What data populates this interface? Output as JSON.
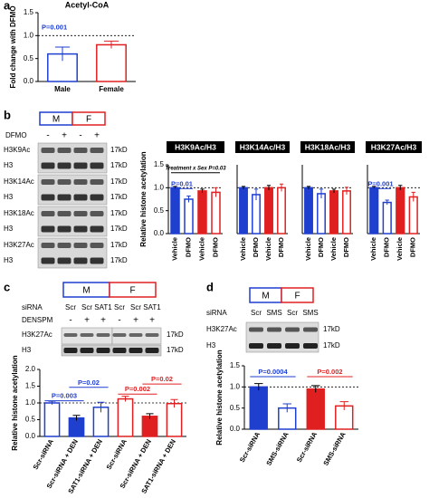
{
  "panels": [
    "a",
    "b",
    "c",
    "d"
  ],
  "blot_b": {
    "sexes": [
      "M",
      "F"
    ],
    "treatment": "DFMO",
    "signs": [
      "-",
      "+",
      "-",
      "+"
    ],
    "rows": [
      "H3K9Ac",
      "H3",
      "H3K14Ac",
      "H3",
      "H3K18Ac",
      "H3",
      "H3K27Ac",
      "H3"
    ],
    "sizes": [
      "17kD",
      "17kD",
      "17kD",
      "17kD",
      "17kD",
      "17kD",
      "17kD",
      "17kD"
    ]
  },
  "blot_c": {
    "sexes": [
      "M",
      "F"
    ],
    "sirna": "siRNA",
    "lanes": [
      "Scr",
      "Scr",
      "SAT1",
      "Scr",
      "Scr",
      "SAT1"
    ],
    "treatment": "DENSPM",
    "signs": [
      "-",
      "+",
      "+",
      "-",
      "+",
      "+"
    ],
    "rows": [
      "H3K27Ac",
      "H3"
    ],
    "sizes": [
      "17kD",
      "17kD"
    ]
  },
  "blot_d": {
    "sexes": [
      "M",
      "F"
    ],
    "sirna": "siRNA",
    "lanes": [
      "Scr",
      "SMS",
      "Scr",
      "SMS"
    ],
    "rows": [
      "H3K27Ac",
      "H3"
    ],
    "sizes": [
      "17kD",
      "17kD"
    ]
  },
  "chart_data": [
    {
      "type": "bar",
      "title": "Acetyl-CoA",
      "ylabel": "Fold change with DFMO",
      "categories": [
        "Male",
        "Female"
      ],
      "values": [
        0.6,
        0.8
      ],
      "errors": [
        0.15,
        0.08
      ],
      "colors": [
        "#1f3fcf",
        "#e02020"
      ],
      "filled": [
        false,
        false
      ],
      "ylim": [
        0,
        1.5
      ],
      "yticks": [
        {
          "value": 0,
          "label": "0.0"
        },
        {
          "value": 0.5,
          "label": "0.5"
        },
        {
          "value": 1,
          "label": "1.0"
        },
        {
          "value": 1.5,
          "label": "1.5"
        }
      ],
      "reference_line": 1,
      "annotations": [
        "P=0.001"
      ]
    },
    {
      "type": "bar",
      "title": "H3K9Ac/H3",
      "ylabel": "Relative histone acetylation",
      "categories": [
        "Vehicle",
        "DFMO",
        "Vehicle",
        "DFMO"
      ],
      "values": [
        1.0,
        0.75,
        0.93,
        0.9
      ],
      "errors": [
        0.03,
        0.07,
        0.04,
        0.1
      ],
      "colors": [
        "#1f3fcf",
        "#1f3fcf",
        "#e02020",
        "#e02020"
      ],
      "filled": [
        true,
        false,
        true,
        false
      ],
      "ylim": [
        0,
        1.5
      ],
      "yticks": [
        {
          "value": 0,
          "label": "0.0"
        },
        {
          "value": 0.5,
          "label": "0.5"
        },
        {
          "value": 1,
          "label": "1.0"
        },
        {
          "value": 1.5,
          "label": "1.5"
        }
      ],
      "reference_line": 1,
      "annotations": [
        "P=0.01",
        "Treatment x Sex P=0.03"
      ]
    },
    {
      "type": "bar",
      "title": "H3K14Ac/H3",
      "categories": [
        "Vehicle",
        "DFMO",
        "Vehicle",
        "DFMO"
      ],
      "values": [
        1.0,
        0.85,
        1.0,
        1.0
      ],
      "errors": [
        0.03,
        0.12,
        0.05,
        0.08
      ],
      "colors": [
        "#1f3fcf",
        "#1f3fcf",
        "#e02020",
        "#e02020"
      ],
      "filled": [
        true,
        false,
        true,
        false
      ],
      "ylim": [
        0,
        1.5
      ],
      "reference_line": 1
    },
    {
      "type": "bar",
      "title": "H3K18Ac/H3",
      "categories": [
        "Vehicle",
        "DFMO",
        "Vehicle",
        "DFMO"
      ],
      "values": [
        1.0,
        0.87,
        0.93,
        0.93
      ],
      "errors": [
        0.03,
        0.1,
        0.04,
        0.08
      ],
      "colors": [
        "#1f3fcf",
        "#1f3fcf",
        "#e02020",
        "#e02020"
      ],
      "filled": [
        true,
        false,
        true,
        false
      ],
      "ylim": [
        0,
        1.5
      ],
      "reference_line": 1
    },
    {
      "type": "bar",
      "title": "H3K27Ac/H3",
      "categories": [
        "Vehicle",
        "DFMO",
        "Vehicle",
        "DFMO"
      ],
      "values": [
        1.0,
        0.68,
        1.0,
        0.8
      ],
      "errors": [
        0.03,
        0.05,
        0.05,
        0.1
      ],
      "colors": [
        "#1f3fcf",
        "#1f3fcf",
        "#e02020",
        "#e02020"
      ],
      "filled": [
        true,
        false,
        true,
        false
      ],
      "ylim": [
        0,
        1.5
      ],
      "reference_line": 1,
      "annotations": [
        "P=0.001"
      ]
    },
    {
      "type": "bar",
      "ylabel": "Relative histone acetylation",
      "categories": [
        "Scr-siRNA",
        "Scr-siRNA + DEN",
        "SAT1-siRNA + DEN",
        "Scr-siRNA",
        "Scr-siRNA + DEN",
        "SAT1-siRNA + DEN"
      ],
      "values": [
        1.0,
        0.55,
        0.87,
        1.12,
        0.6,
        0.98
      ],
      "errors": [
        0.05,
        0.08,
        0.15,
        0.08,
        0.08,
        0.12
      ],
      "colors": [
        "#1f3fcf",
        "#1f3fcf",
        "#1f3fcf",
        "#e02020",
        "#e02020",
        "#e02020"
      ],
      "filled": [
        false,
        true,
        false,
        false,
        true,
        false
      ],
      "ylim": [
        0,
        2
      ],
      "yticks": [
        {
          "value": 0,
          "label": "0.0"
        },
        {
          "value": 0.5,
          "label": "0.5"
        },
        {
          "value": 1,
          "label": "1.0"
        },
        {
          "value": 1.5,
          "label": "1.5"
        },
        {
          "value": 2,
          "label": "2.0"
        }
      ],
      "reference_line": 1,
      "annotations": [
        "P=0.003",
        "P=0.02",
        "P=0.002",
        "P=0.02"
      ]
    },
    {
      "type": "bar",
      "ylabel": "Relative histone acetylation",
      "categories": [
        "Scr-siRNA",
        "SMS-siRNA",
        "Scr-siRNA",
        "SMS-siRNA"
      ],
      "values": [
        1.0,
        0.5,
        0.95,
        0.55
      ],
      "errors": [
        0.08,
        0.1,
        0.08,
        0.1
      ],
      "colors": [
        "#1f3fcf",
        "#1f3fcf",
        "#e02020",
        "#e02020"
      ],
      "filled": [
        true,
        false,
        true,
        false
      ],
      "ylim": [
        0,
        1.5
      ],
      "yticks": [
        {
          "value": 0,
          "label": "0.0"
        },
        {
          "value": 0.5,
          "label": "0.5"
        },
        {
          "value": 1,
          "label": "1.0"
        },
        {
          "value": 1.5,
          "label": "1.5"
        }
      ],
      "reference_line": 1,
      "annotations": [
        "P=0.0004",
        "P=0.002"
      ]
    }
  ]
}
